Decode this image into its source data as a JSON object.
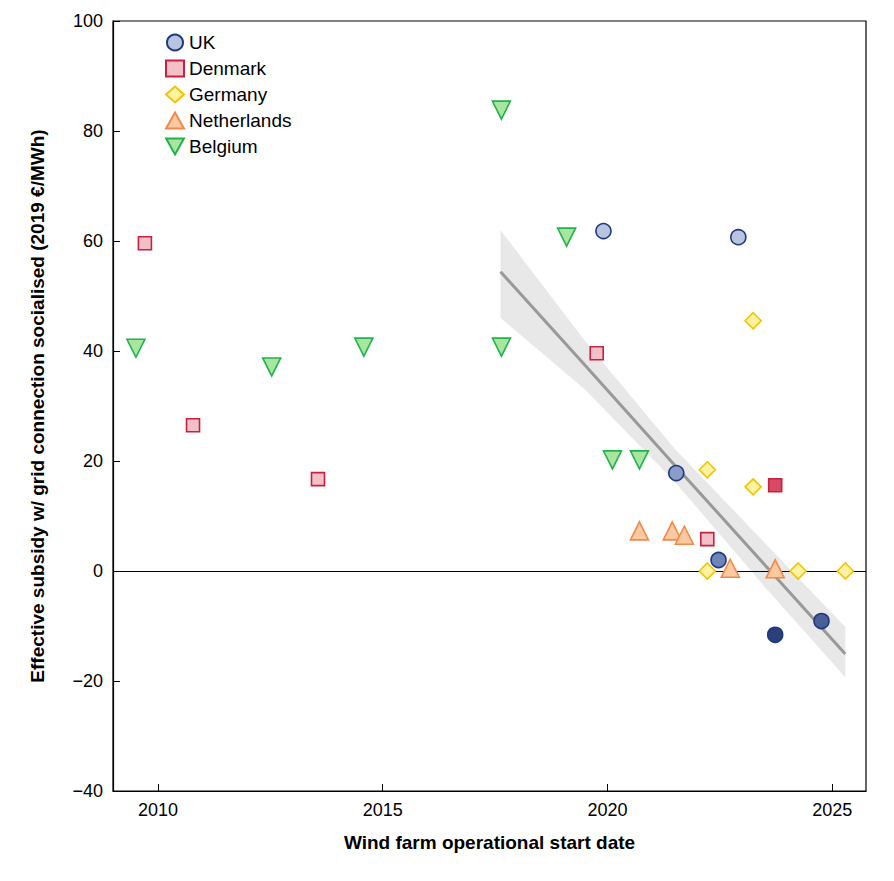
{
  "chart_data": {
    "type": "scatter",
    "x_label": "Wind farm operational start date",
    "y_label": "Effective subsidy w/ grid connection socialised (2019 €/MWh)",
    "xlim": [
      2009,
      2025.75
    ],
    "xticks": [
      2010,
      2015,
      2020,
      2025
    ],
    "ylim": [
      -40,
      100
    ],
    "yticks": [
      {
        "value": -40,
        "label": "−40"
      },
      {
        "value": -20,
        "label": "−20"
      },
      0,
      20,
      40,
      60,
      80,
      100
    ],
    "grid": false,
    "legend": "upper left",
    "hlines": [
      0
    ],
    "series": [
      {
        "name": "UK",
        "marker": "circle",
        "color": "#1f3a7a",
        "colors": [
          "#b9c4e0",
          "#b9c4e0",
          "#8a9cc8",
          "#6e84bb",
          "#2b3f7a",
          "#4a5f9a"
        ],
        "x": [
          2019.91,
          2022.91,
          2021.53,
          2022.47,
          2023.73,
          2024.76
        ],
        "values": [
          61.8,
          60.7,
          17.8,
          2.0,
          -11.6,
          -9.1
        ]
      },
      {
        "name": "Denmark",
        "marker": "square",
        "color": "#c8203f",
        "colors": [
          "#f3c0c8",
          "#f3c0c8",
          "#f3c0c8",
          "#f3c0c8",
          "#f3c0c8",
          "#d84a63"
        ],
        "x": [
          2009.71,
          2010.78,
          2013.56,
          2019.76,
          2022.22,
          2023.73
        ],
        "values": [
          59.6,
          26.5,
          16.7,
          39.6,
          5.8,
          15.6
        ]
      },
      {
        "name": "Germany",
        "marker": "diamond",
        "color": "#f2c300",
        "colors": [
          "#fff2a0",
          "#fff2a0",
          "#fff2a0",
          "#fff2a0",
          "#fff2a0",
          "#fff2a0"
        ],
        "x": [
          2023.24,
          2022.22,
          2023.24,
          2022.22,
          2024.24,
          2025.29
        ],
        "values": [
          45.5,
          18.4,
          15.3,
          0,
          0,
          0
        ]
      },
      {
        "name": "Netherlands",
        "marker": "triangle-up",
        "color": "#f08a4b",
        "colors": [
          "#fcc9a0",
          "#fcc9a0",
          "#fcc9a0",
          "#fcc9a0",
          "#fcc9a0"
        ],
        "x": [
          2020.71,
          2021.44,
          2021.71,
          2022.73,
          2023.73
        ],
        "values": [
          7.3,
          7.3,
          6.5,
          0.5,
          0.4
        ]
      },
      {
        "name": "Belgium",
        "marker": "triangle-down",
        "color": "#22b24c",
        "colors": [
          "#a8e6a0",
          "#a8e6a0",
          "#a8e6a0",
          "#a8e6a0",
          "#a8e6a0",
          "#a8e6a0",
          "#a8e6a0",
          "#a8e6a0"
        ],
        "x": [
          2009.51,
          2012.53,
          2014.58,
          2017.64,
          2017.64,
          2019.09,
          2020.11,
          2020.71
        ],
        "values": [
          40.5,
          37.1,
          40.7,
          83.8,
          40.7,
          60.7,
          20.2,
          20.2
        ]
      }
    ],
    "trend_line": {
      "type": "line",
      "color": "#999999",
      "band_color": "#e8e8e8",
      "x": [
        2017.62,
        2019.5,
        2021.5,
        2023.5,
        2025.29
      ],
      "values": [
        54.4,
        37.4,
        19.2,
        1.1,
        -15.1
      ],
      "lower": [
        46.0,
        33.0,
        16.2,
        -2.9,
        -19.3
      ],
      "upper": [
        62.0,
        41.8,
        22.2,
        5.1,
        -10.2
      ]
    }
  }
}
